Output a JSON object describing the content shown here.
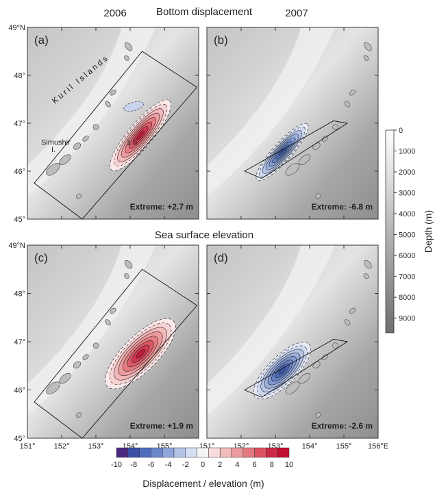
{
  "titles": {
    "col_left": "2006",
    "col_right": "2007",
    "row_top": "Bottom displacement",
    "row_bottom": "Sea surface elevation"
  },
  "chart_data": [
    {
      "type": "contour",
      "panel": "(a)",
      "region": "left",
      "row": "top",
      "xlim": [
        151,
        156
      ],
      "ylim": [
        45,
        49
      ],
      "extreme_label": "Extreme: +2.7 m",
      "extreme_value": 2.7,
      "contour_label": "1.5",
      "source": {
        "lon": 154.3,
        "lat": 46.75,
        "rx_km": 1.55,
        "ry_km": 0.42,
        "angle": -50,
        "sign": 1
      },
      "fault_box": [
        [
          151.2,
          45.75
        ],
        [
          154.35,
          48.5
        ],
        [
          155.95,
          47.75
        ],
        [
          152.6,
          45.0
        ]
      ],
      "places": [
        {
          "text": "Kuril  Islands",
          "lon": 151.8,
          "lat": 47.4
        },
        {
          "text": "Simushir",
          "lon": 151.4,
          "lat": 46.55
        },
        {
          "text": "I.",
          "lon": 151.7,
          "lat": 46.4
        }
      ]
    },
    {
      "type": "contour",
      "panel": "(b)",
      "region": "right",
      "row": "top",
      "xlim": [
        153.5,
        156
      ],
      "ylim": [
        45,
        49
      ],
      "extreme_label": "Extreme: -6.8 m",
      "extreme_value": -6.8,
      "source": {
        "lon": 154.6,
        "lat": 46.4,
        "rx_km": 1.0,
        "ry_km": 0.25,
        "angle": -48,
        "sign": -1
      },
      "fault_box": [
        [
          154.05,
          46.0
        ],
        [
          155.35,
          47.05
        ],
        [
          155.55,
          47.0
        ],
        [
          154.3,
          45.85
        ]
      ]
    },
    {
      "type": "contour",
      "panel": "(c)",
      "region": "left",
      "row": "bottom",
      "xlim": [
        151,
        156
      ],
      "ylim": [
        45,
        49
      ],
      "extreme_label": "Extreme: +1.9 m",
      "extreme_value": 1.9,
      "source": {
        "lon": 154.3,
        "lat": 46.75,
        "rx_km": 1.6,
        "ry_km": 0.6,
        "angle": -45,
        "sign": 1
      },
      "fault_box": [
        [
          151.2,
          45.75
        ],
        [
          154.35,
          48.5
        ],
        [
          155.95,
          47.75
        ],
        [
          152.6,
          45.0
        ]
      ]
    },
    {
      "type": "contour",
      "panel": "(d)",
      "region": "right",
      "row": "bottom",
      "xlim": [
        153.5,
        156
      ],
      "ylim": [
        45,
        49
      ],
      "extreme_label": "Extreme: -2.6 m",
      "extreme_value": -2.6,
      "source": {
        "lon": 154.6,
        "lat": 46.4,
        "rx_km": 1.0,
        "ry_km": 0.38,
        "angle": -45,
        "sign": -1
      },
      "fault_box": [
        [
          154.05,
          46.0
        ],
        [
          155.35,
          47.05
        ],
        [
          155.55,
          47.0
        ],
        [
          154.3,
          45.85
        ]
      ]
    }
  ],
  "axes": {
    "lat_ticks": [
      49,
      48,
      47,
      46,
      45
    ],
    "lat_labels": [
      "49°N",
      "48°",
      "47°",
      "46°",
      "45°"
    ],
    "lon_ticks_left": [
      151,
      152,
      153,
      154,
      155
    ],
    "lon_labels_left": [
      "151°",
      "152°",
      "153°",
      "154°",
      "155°"
    ],
    "lon_ticks_right": [
      151,
      152,
      153,
      154,
      155,
      156
    ],
    "lon_labels_right": [
      "151°",
      "152°",
      "153°",
      "154°",
      "155°",
      "156°E"
    ]
  },
  "depth_colorbar": {
    "title": "Depth (m)",
    "ticks": [
      "0",
      "1000",
      "2000",
      "3000",
      "4000",
      "5000",
      "6000",
      "7000",
      "8000",
      "9000"
    ],
    "min": 0,
    "max": 9700
  },
  "displacement_colorbar": {
    "title": "Displacement / elevation (m)",
    "ticks": [
      "-10",
      "-8",
      "-6",
      "-4",
      "-2",
      "0",
      "2",
      "4",
      "6",
      "8",
      "10"
    ],
    "colors": [
      "#4a2a80",
      "#3a4fa8",
      "#4f6ec0",
      "#6a88cc",
      "#8ea6da",
      "#b3c4e8",
      "#d5def2",
      "#f5f5f5",
      "#f8dcdc",
      "#f3bcbc",
      "#ec9c9e",
      "#e47a80",
      "#dc5462",
      "#cf2a45",
      "#c01030"
    ]
  }
}
